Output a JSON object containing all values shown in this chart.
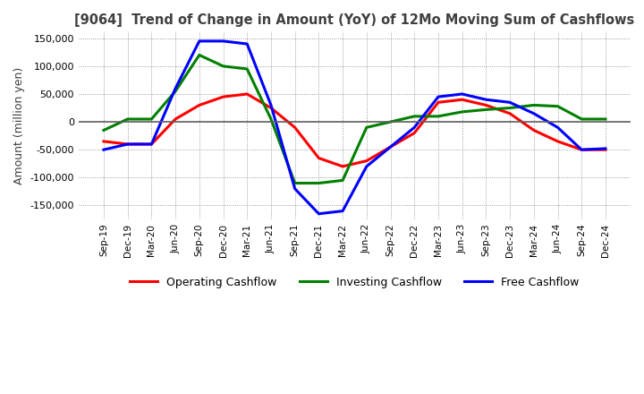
{
  "title": "[9064]  Trend of Change in Amount (YoY) of 12Mo Moving Sum of Cashflows",
  "ylabel": "Amount (million yen)",
  "ylim": [
    -175000,
    162000
  ],
  "yticks": [
    -150000,
    -100000,
    -50000,
    0,
    50000,
    100000,
    150000
  ],
  "x_labels": [
    "Sep-19",
    "Dec-19",
    "Mar-20",
    "Jun-20",
    "Sep-20",
    "Dec-20",
    "Mar-21",
    "Jun-21",
    "Sep-21",
    "Dec-21",
    "Mar-22",
    "Jun-22",
    "Sep-22",
    "Dec-22",
    "Mar-23",
    "Jun-23",
    "Sep-23",
    "Dec-23",
    "Mar-24",
    "Jun-24",
    "Sep-24",
    "Dec-24"
  ],
  "operating": [
    -35000,
    -40000,
    -40000,
    5000,
    30000,
    45000,
    50000,
    25000,
    -10000,
    -65000,
    -80000,
    -70000,
    -45000,
    -20000,
    35000,
    40000,
    30000,
    15000,
    -15000,
    -35000,
    -50000,
    -50000
  ],
  "investing": [
    -15000,
    5000,
    5000,
    55000,
    120000,
    100000,
    95000,
    5000,
    -110000,
    -110000,
    -105000,
    -10000,
    0,
    10000,
    10000,
    18000,
    22000,
    25000,
    30000,
    28000,
    5000,
    5000
  ],
  "free": [
    -50000,
    -40000,
    -40000,
    60000,
    145000,
    145000,
    140000,
    30000,
    -120000,
    -165000,
    -160000,
    -80000,
    -45000,
    -10000,
    45000,
    50000,
    40000,
    35000,
    15000,
    -10000,
    -50000,
    -48000
  ],
  "operating_color": "#ff0000",
  "investing_color": "#008000",
  "free_color": "#0000ff",
  "background_color": "#ffffff",
  "grid_color": "#808080",
  "title_color": "#404040",
  "line_width": 2.2
}
